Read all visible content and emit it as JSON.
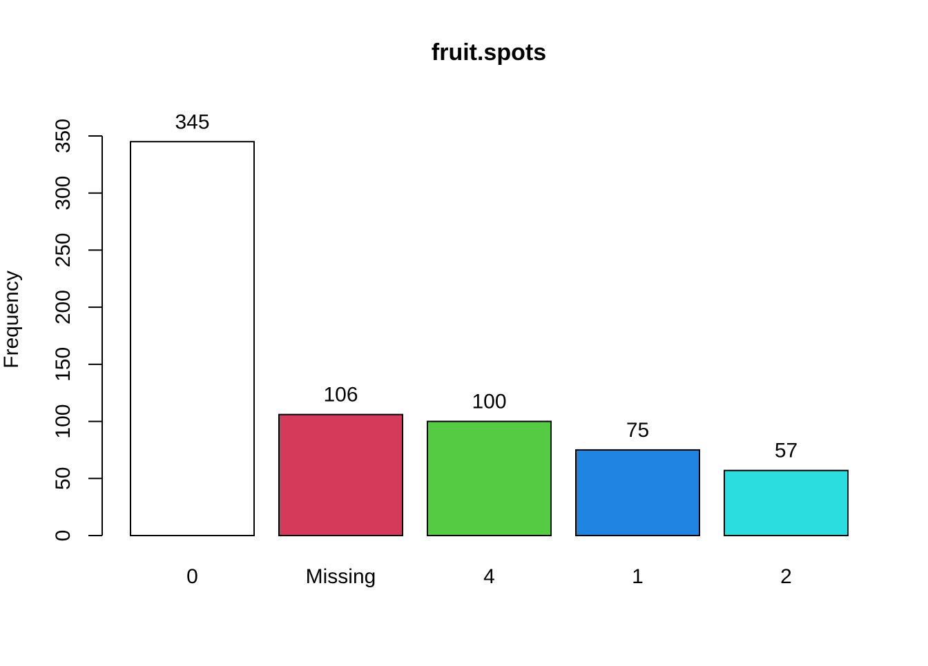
{
  "chart_data": {
    "type": "bar",
    "title": "fruit.spots",
    "xlabel": "",
    "ylabel": "Frequency",
    "categories": [
      "0",
      "Missing",
      "4",
      "1",
      "2"
    ],
    "values": [
      345,
      106,
      100,
      75,
      57
    ],
    "value_labels": [
      "345",
      "106",
      "100",
      "75",
      "57"
    ],
    "colors": [
      "#FFFFFF",
      "#D63A5A",
      "#54CB43",
      "#1F84E2",
      "#2CDDE0"
    ],
    "ylim": [
      0,
      350
    ],
    "yticks": [
      0,
      50,
      100,
      150,
      200,
      250,
      300,
      350
    ],
    "ytick_labels": [
      "0",
      "50",
      "100",
      "150",
      "200",
      "250",
      "300",
      "350"
    ],
    "grid": false,
    "legend": "none"
  }
}
